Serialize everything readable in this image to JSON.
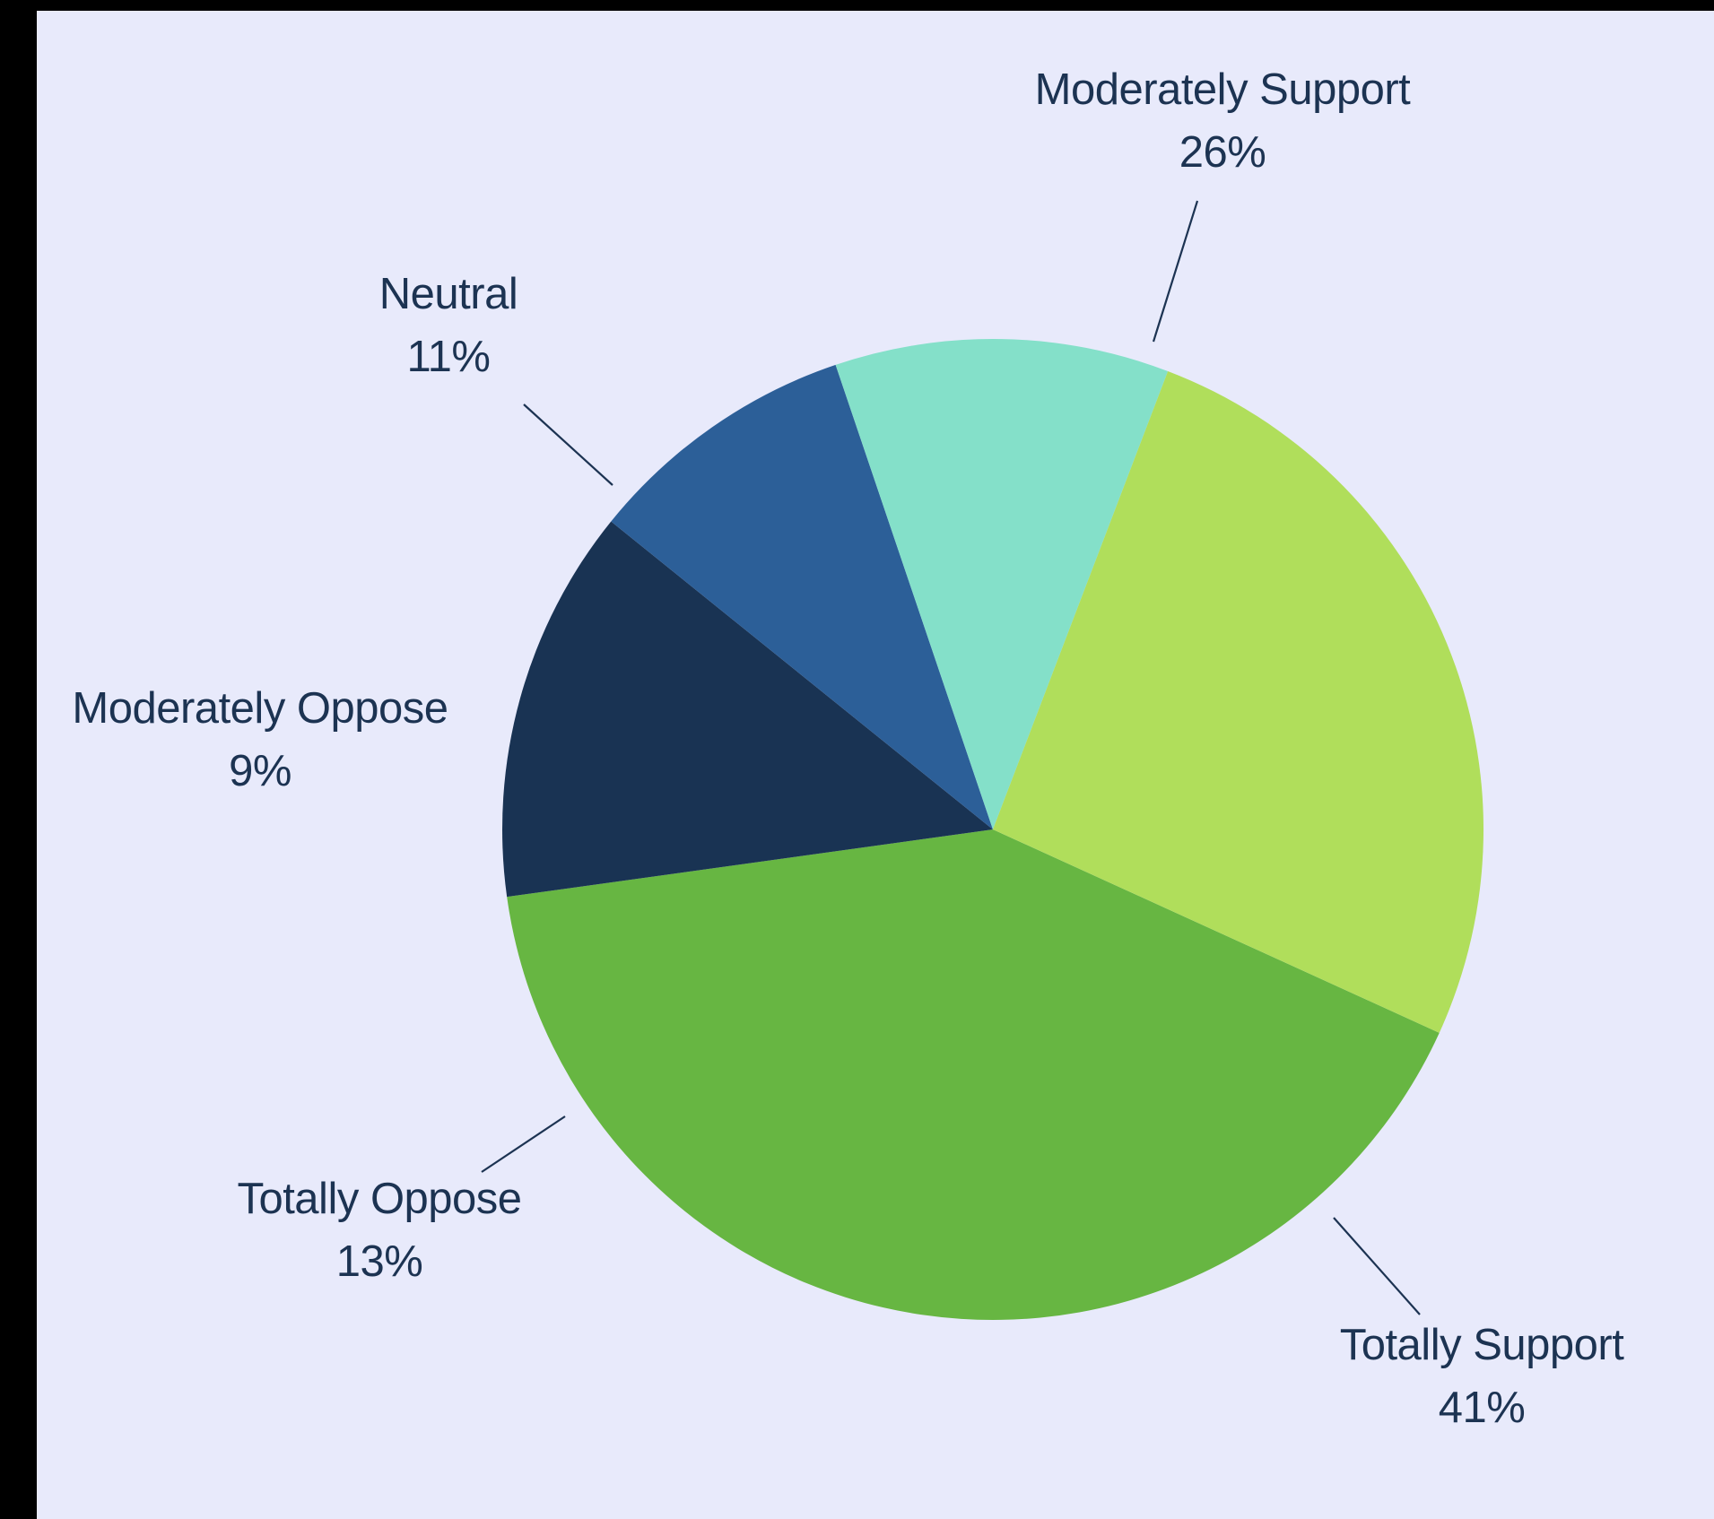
{
  "chart_data": {
    "type": "pie",
    "title": "",
    "slices": [
      {
        "label": "Totally Support",
        "value": 41,
        "display": "41%",
        "color": "#67b642"
      },
      {
        "label": "Totally Oppose",
        "value": 13,
        "display": "13%",
        "color": "#193353"
      },
      {
        "label": "Moderately Oppose",
        "value": 9,
        "display": "9%",
        "color": "#2c5f98"
      },
      {
        "label": "Neutral",
        "value": 11,
        "display": "11%",
        "color": "#84e0c9"
      },
      {
        "label": "Moderately Support",
        "value": 26,
        "display": "26%",
        "color": "#b0de5b"
      }
    ],
    "legend": "none",
    "labels": "outside with leader lines"
  },
  "colors": {
    "background": "#e8eafb",
    "frame": "#000000",
    "text": "#1c3352"
  }
}
